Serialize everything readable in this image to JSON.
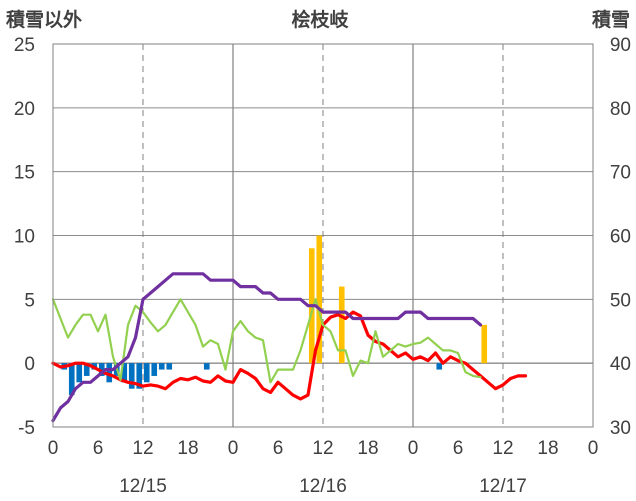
{
  "chart_data": {
    "type": "combo",
    "title": "桧枝岐",
    "y_left_label": "積雪以外",
    "y_right_label": "積雪",
    "y_left_ticks": [
      "25",
      "20",
      "15",
      "10",
      "5",
      "0",
      "-5"
    ],
    "y_right_ticks": [
      "90",
      "80",
      "70",
      "60",
      "50",
      "40",
      "30"
    ],
    "ylim_left": [
      -5,
      25
    ],
    "ylim_right": [
      30,
      90
    ],
    "xlim_hours": [
      0,
      72
    ],
    "x_tick_labels": [
      "0",
      "6",
      "12",
      "18",
      "0",
      "6",
      "12",
      "18",
      "0",
      "6",
      "12",
      "18",
      "0"
    ],
    "date_labels": [
      "12/15",
      "12/16",
      "12/17"
    ],
    "grid": true,
    "colors": {
      "bar_positive": "#FFC000",
      "bar_negative": "#0070C0",
      "line_red": "#FF0000",
      "line_green": "#92D050",
      "line_purple": "#7030A0"
    },
    "bars": {
      "hours": [
        0,
        1,
        2,
        3,
        4,
        5,
        6,
        7,
        8,
        9,
        10,
        11,
        12,
        13,
        14,
        15,
        16,
        17,
        18,
        19,
        20,
        21,
        22,
        23,
        24,
        25,
        26,
        27,
        28,
        29,
        30,
        31,
        32,
        33,
        34,
        35,
        36,
        37,
        38,
        39,
        40,
        41,
        42,
        43,
        44,
        45,
        46,
        47,
        48,
        49,
        50,
        51,
        52,
        53,
        54,
        55,
        56,
        57
      ],
      "values": [
        0,
        -0.5,
        -2.5,
        -1.5,
        -1,
        -0.5,
        -1,
        -1.5,
        -1,
        -1.5,
        -2,
        -2,
        -1.5,
        -1,
        -0.5,
        -0.5,
        0,
        0,
        0,
        0,
        -0.5,
        0,
        0,
        0,
        0,
        0,
        0,
        0,
        0,
        0,
        0,
        0,
        0,
        0,
        9,
        10,
        0,
        0,
        6,
        0,
        0,
        0,
        0,
        0,
        0,
        0,
        0,
        0,
        0,
        0,
        0,
        -0.5,
        0,
        0,
        0,
        0,
        0,
        3
      ]
    },
    "series": [
      {
        "axis": "left",
        "color": "#FF0000",
        "x": [
          0,
          1,
          2,
          3,
          4,
          5,
          6,
          7,
          8,
          9,
          10,
          11,
          12,
          13,
          14,
          15,
          16,
          17,
          18,
          19,
          20,
          21,
          22,
          23,
          24,
          25,
          26,
          27,
          28,
          29,
          30,
          31,
          32,
          33,
          34,
          35,
          36,
          37,
          38,
          39,
          40,
          41,
          42,
          43,
          44,
          45,
          46,
          47,
          48,
          49,
          50,
          51,
          52,
          53,
          54,
          55,
          56,
          57,
          58,
          59,
          60,
          61,
          62,
          63
        ],
        "y": [
          0,
          -0.3,
          -0.2,
          0,
          0,
          -0.2,
          -0.5,
          -0.8,
          -1,
          -1.3,
          -1.5,
          -1.6,
          -1.8,
          -1.7,
          -1.8,
          -2,
          -1.5,
          -1.2,
          -1.3,
          -1.1,
          -1.4,
          -1.5,
          -1,
          -1.4,
          -1.5,
          -0.5,
          -0.8,
          -1.2,
          -2,
          -2.3,
          -1.5,
          -2,
          -2.5,
          -2.8,
          -2.5,
          1,
          3,
          3.6,
          3.8,
          3.5,
          4,
          3.7,
          2.2,
          1.7,
          1.5,
          1,
          0.5,
          0.8,
          0.3,
          0.5,
          0.2,
          0.8,
          0,
          0.5,
          0.2,
          0,
          -0.5,
          -1,
          -1.5,
          -2,
          -1.7,
          -1.2,
          -1,
          -1
        ]
      },
      {
        "axis": "left",
        "color": "#92D050",
        "x": [
          0,
          1,
          2,
          3,
          4,
          5,
          6,
          7,
          8,
          9,
          10,
          11,
          12,
          13,
          14,
          15,
          16,
          17,
          18,
          19,
          20,
          21,
          22,
          23,
          24,
          25,
          26,
          27,
          28,
          29,
          30,
          31,
          32,
          33,
          34,
          35,
          36,
          37,
          38,
          39,
          40,
          41,
          42,
          43,
          44,
          45,
          46,
          47,
          48,
          49,
          50,
          51,
          52,
          53,
          54,
          55,
          56,
          57
        ],
        "y": [
          5,
          3.5,
          2,
          3,
          3.8,
          3.8,
          2.5,
          3.8,
          0.5,
          -1.3,
          3,
          4.5,
          4,
          3.2,
          2.5,
          3,
          4,
          5,
          4,
          3,
          1.3,
          1.8,
          1.5,
          -0.5,
          2.5,
          3.3,
          2.5,
          2,
          1.8,
          -1.5,
          -0.5,
          -0.5,
          -0.5,
          1,
          3,
          5,
          3,
          2.5,
          1,
          1,
          -1,
          0.2,
          0,
          2.5,
          0.5,
          1,
          1.5,
          1.3,
          1.5,
          1.6,
          2,
          1.5,
          1,
          1,
          0.8,
          -0.7,
          -1,
          -1.1
        ]
      },
      {
        "axis": "right",
        "color": "#7030A0",
        "x": [
          0,
          1,
          2,
          3,
          4,
          5,
          6,
          7,
          8,
          9,
          10,
          11,
          12,
          13,
          14,
          15,
          16,
          17,
          18,
          19,
          20,
          21,
          22,
          23,
          24,
          25,
          26,
          27,
          28,
          29,
          30,
          31,
          32,
          33,
          34,
          35,
          36,
          37,
          38,
          39,
          40,
          41,
          42,
          43,
          44,
          45,
          46,
          47,
          48,
          49,
          50,
          51,
          52,
          53,
          54,
          55,
          56,
          57
        ],
        "y": [
          31,
          33,
          34,
          36,
          37,
          37,
          38,
          39,
          39,
          40,
          41,
          44,
          50,
          51,
          52,
          53,
          54,
          54,
          54,
          54,
          54,
          53,
          53,
          53,
          53,
          52,
          52,
          52,
          51,
          51,
          50,
          50,
          50,
          50,
          49,
          49,
          48,
          48,
          48,
          48,
          47,
          47,
          47,
          47,
          47,
          47,
          47,
          48,
          48,
          48,
          47,
          47,
          47,
          47,
          47,
          47,
          47,
          46
        ]
      }
    ]
  }
}
